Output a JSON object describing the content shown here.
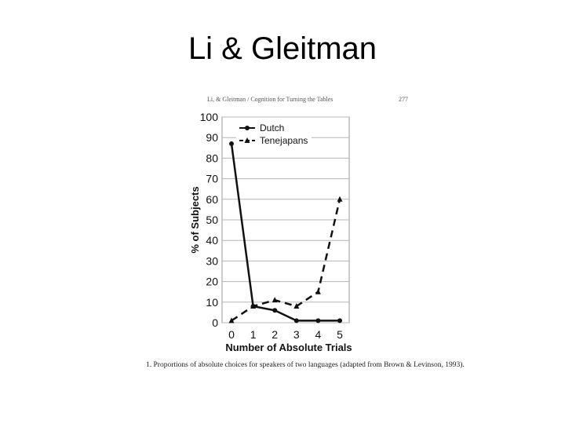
{
  "slide": {
    "title": "Li & Gleitman"
  },
  "figure": {
    "header_text": "Li, & Gleitman / Cognition for Turning the Tables",
    "page_number": "277",
    "caption": "1. Proportions of absolute choices for speakers of two languages (adapted from Brown & Levinson, 1993)."
  },
  "chart_data": {
    "type": "line",
    "xlabel": "Number of Absolute Trials",
    "ylabel": "% of Subjects",
    "x": [
      0,
      1,
      2,
      3,
      4,
      5
    ],
    "xlim": [
      0,
      5
    ],
    "ylim": [
      0,
      100
    ],
    "yticks": [
      0,
      10,
      20,
      30,
      40,
      50,
      60,
      70,
      80,
      90,
      100
    ],
    "grid": true,
    "legend_position": "top-left",
    "series": [
      {
        "name": "Dutch",
        "values": [
          87,
          8,
          6,
          1,
          1,
          1
        ],
        "style": "solid",
        "marker": "circle",
        "color": "#111111"
      },
      {
        "name": "Tenejapans",
        "values": [
          1,
          8,
          11,
          8,
          15,
          60
        ],
        "style": "dashed",
        "marker": "triangle",
        "color": "#111111"
      }
    ]
  }
}
